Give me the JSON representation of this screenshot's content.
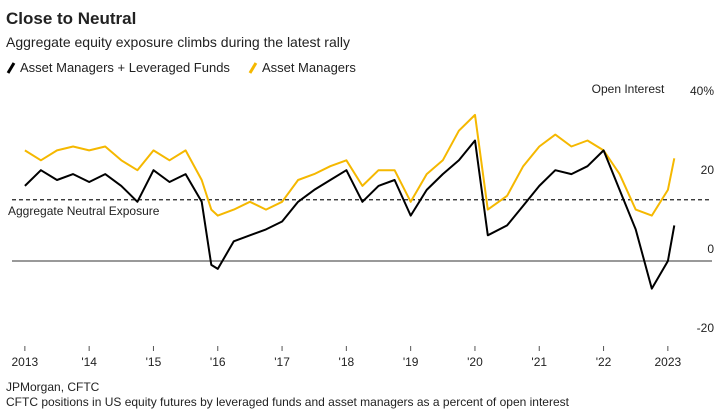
{
  "chart_data": {
    "type": "line",
    "title": "Close to Neutral",
    "subtitle": "Aggregate equity exposure climbs during the latest rally",
    "y_axis_label": "Open Interest",
    "source": "JPMorgan, CFTC",
    "note": "CFTC positions in US equity futures by leveraged funds and asset managers as a percent of open interest",
    "neutral_label": "Aggregate Neutral Exposure",
    "neutral_level": 15.5,
    "x": [
      2013.0,
      2013.25,
      2013.5,
      2013.75,
      2014.0,
      2014.25,
      2014.5,
      2014.75,
      2015.0,
      2015.25,
      2015.5,
      2015.75,
      2015.9,
      2016.0,
      2016.25,
      2016.5,
      2016.75,
      2017.0,
      2017.25,
      2017.5,
      2017.75,
      2018.0,
      2018.25,
      2018.5,
      2018.75,
      2019.0,
      2019.25,
      2019.5,
      2019.75,
      2020.0,
      2020.2,
      2020.5,
      2020.75,
      2021.0,
      2021.25,
      2021.5,
      2021.75,
      2022.0,
      2022.25,
      2022.5,
      2022.75,
      2023.0,
      2023.1
    ],
    "series": [
      {
        "name": "Asset Managers + Leveraged Funds",
        "color": "#000000",
        "values": [
          19,
          23,
          20.5,
          22,
          20,
          22,
          19,
          15,
          23,
          20,
          22,
          15,
          -1,
          -2,
          5,
          6.5,
          8,
          10,
          15,
          18,
          20.5,
          23,
          15,
          19,
          20.5,
          11.5,
          18,
          22,
          25.5,
          30.5,
          6.5,
          9,
          14,
          19,
          23,
          22,
          24,
          28,
          18,
          8,
          -7,
          0,
          9
        ]
      },
      {
        "name": "Asset Managers",
        "color": "#f5b800",
        "values": [
          28,
          25.5,
          28,
          29,
          28,
          29,
          25.5,
          23,
          28,
          25.5,
          28,
          20.5,
          13,
          11.5,
          13,
          15,
          13,
          15,
          20.5,
          22,
          24,
          25.5,
          19,
          23,
          23,
          15,
          22,
          25.5,
          33,
          37,
          13,
          16.5,
          24,
          29,
          32,
          29,
          30.5,
          28,
          22,
          13,
          11.5,
          18,
          26
        ]
      }
    ],
    "xlim": [
      2012.8,
      2023.5
    ],
    "xticks": [
      {
        "value": 2013,
        "label": "2013"
      },
      {
        "value": 2014,
        "label": "'14"
      },
      {
        "value": 2015,
        "label": "'15"
      },
      {
        "value": 2016,
        "label": "'16"
      },
      {
        "value": 2017,
        "label": "'17"
      },
      {
        "value": 2018,
        "label": "'18"
      },
      {
        "value": 2019,
        "label": "'19"
      },
      {
        "value": 2020,
        "label": "'20"
      },
      {
        "value": 2021,
        "label": "'21"
      },
      {
        "value": 2022,
        "label": "'22"
      },
      {
        "value": 2023,
        "label": "2023"
      }
    ],
    "ylim": [
      -20,
      40
    ],
    "yticks": [
      {
        "value": 40,
        "label": "40%"
      },
      20,
      0,
      -20
    ],
    "grid": false
  }
}
